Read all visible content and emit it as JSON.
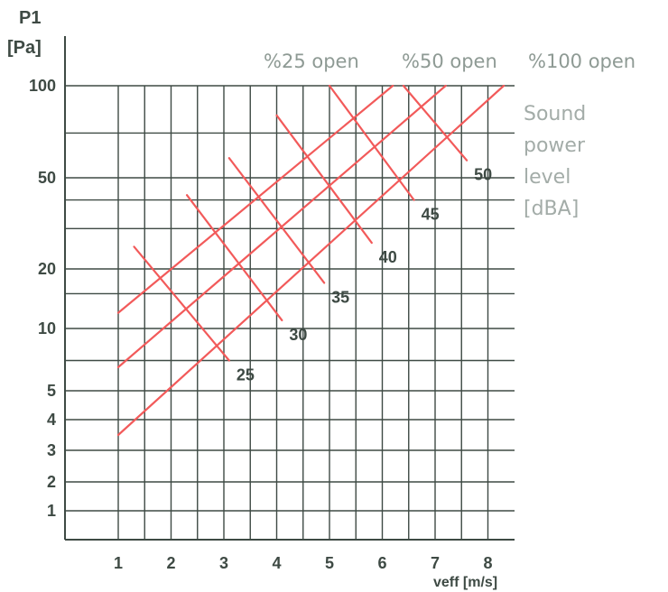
{
  "chart_data": {
    "type": "line",
    "ylabel_line1": "P1",
    "ylabel_line2": "[Pa]",
    "xlabel": "veff [m/s]",
    "x_ticks": [
      1,
      2,
      3,
      4,
      5,
      6,
      7,
      8
    ],
    "y_ticks": [
      1,
      2,
      3,
      4,
      5,
      10,
      20,
      50,
      100
    ],
    "y_scale": "nonlinear (labeled ticks)",
    "xlim": [
      0,
      8.5
    ],
    "ylim": [
      0,
      100
    ],
    "grid": true,
    "series": [
      {
        "name": "%25 open",
        "points": [
          [
            1,
            12
          ],
          [
            6.2,
            100
          ]
        ]
      },
      {
        "name": "%50 open",
        "points": [
          [
            1,
            6.5
          ],
          [
            7.2,
            100
          ]
        ]
      },
      {
        "name": "%100 open",
        "points": [
          [
            1,
            3.5
          ],
          [
            8.3,
            100
          ]
        ]
      }
    ],
    "iso_lines": [
      {
        "label": "25",
        "from": [
          1.3,
          25
        ],
        "to": [
          3.1,
          7
        ]
      },
      {
        "label": "30",
        "from": [
          2.3,
          42
        ],
        "to": [
          4.1,
          11
        ]
      },
      {
        "label": "35",
        "from": [
          3.1,
          58
        ],
        "to": [
          4.9,
          17
        ]
      },
      {
        "label": "40",
        "from": [
          4.0,
          80
        ],
        "to": [
          5.8,
          26
        ]
      },
      {
        "label": "45",
        "from": [
          5.0,
          100
        ],
        "to": [
          6.6,
          40
        ]
      },
      {
        "label": "50",
        "from": [
          6.4,
          100
        ],
        "to": [
          7.6,
          57
        ]
      }
    ],
    "legend_lines": [
      "Sound",
      "power",
      "level",
      "[dBA]"
    ],
    "colors": {
      "curve": "#f25a5a",
      "grid": "#3e4a44",
      "axis_text": "#3e4a44",
      "series_text": "#8e9a94",
      "legend_text": "#a3aca8"
    }
  }
}
